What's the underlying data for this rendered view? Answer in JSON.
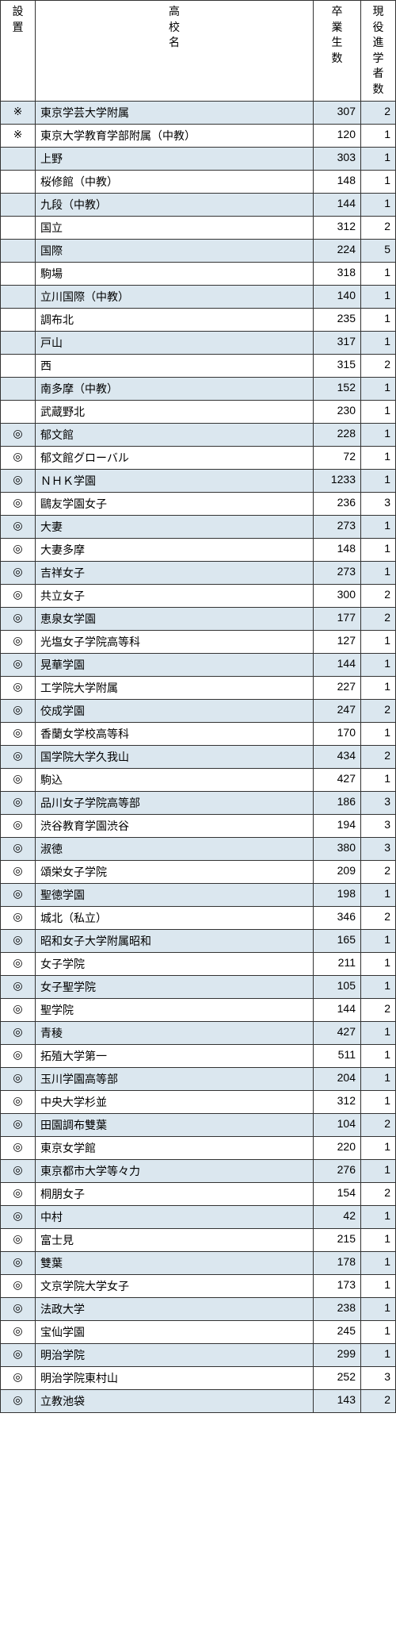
{
  "header": {
    "col1": [
      "設",
      "置"
    ],
    "col2": [
      "高",
      "校",
      "名"
    ],
    "col3": [
      "卒",
      "業",
      "生",
      "数"
    ],
    "col4": [
      "現",
      "役",
      "進",
      "学",
      "者",
      "数"
    ]
  },
  "stripe_color": "#dbe7ef",
  "rows": [
    {
      "mark": "※",
      "name": "東京学芸大学附属",
      "grad": 307,
      "adv": 2,
      "stripe": true
    },
    {
      "mark": "※",
      "name": "東京大学教育学部附属（中教）",
      "grad": 120,
      "adv": 1,
      "stripe": false
    },
    {
      "mark": "",
      "name": "上野",
      "grad": 303,
      "adv": 1,
      "stripe": true
    },
    {
      "mark": "",
      "name": "桜修館（中教）",
      "grad": 148,
      "adv": 1,
      "stripe": false
    },
    {
      "mark": "",
      "name": "九段（中教）",
      "grad": 144,
      "adv": 1,
      "stripe": true
    },
    {
      "mark": "",
      "name": "国立",
      "grad": 312,
      "adv": 2,
      "stripe": false
    },
    {
      "mark": "",
      "name": "国際",
      "grad": 224,
      "adv": 5,
      "stripe": true
    },
    {
      "mark": "",
      "name": "駒場",
      "grad": 318,
      "adv": 1,
      "stripe": false
    },
    {
      "mark": "",
      "name": "立川国際（中教）",
      "grad": 140,
      "adv": 1,
      "stripe": true
    },
    {
      "mark": "",
      "name": "調布北",
      "grad": 235,
      "adv": 1,
      "stripe": false
    },
    {
      "mark": "",
      "name": "戸山",
      "grad": 317,
      "adv": 1,
      "stripe": true
    },
    {
      "mark": "",
      "name": "西",
      "grad": 315,
      "adv": 2,
      "stripe": false
    },
    {
      "mark": "",
      "name": "南多摩（中教）",
      "grad": 152,
      "adv": 1,
      "stripe": true
    },
    {
      "mark": "",
      "name": "武蔵野北",
      "grad": 230,
      "adv": 1,
      "stripe": false
    },
    {
      "mark": "◎",
      "name": "郁文館",
      "grad": 228,
      "adv": 1,
      "stripe": true
    },
    {
      "mark": "◎",
      "name": "郁文館グローバル",
      "grad": 72,
      "adv": 1,
      "stripe": false
    },
    {
      "mark": "◎",
      "name": "ＮＨＫ学園",
      "grad": 1233,
      "adv": 1,
      "stripe": true
    },
    {
      "mark": "◎",
      "name": "鷗友学園女子",
      "grad": 236,
      "adv": 3,
      "stripe": false
    },
    {
      "mark": "◎",
      "name": "大妻",
      "grad": 273,
      "adv": 1,
      "stripe": true
    },
    {
      "mark": "◎",
      "name": "大妻多摩",
      "grad": 148,
      "adv": 1,
      "stripe": false
    },
    {
      "mark": "◎",
      "name": "吉祥女子",
      "grad": 273,
      "adv": 1,
      "stripe": true
    },
    {
      "mark": "◎",
      "name": "共立女子",
      "grad": 300,
      "adv": 2,
      "stripe": false
    },
    {
      "mark": "◎",
      "name": "恵泉女学園",
      "grad": 177,
      "adv": 2,
      "stripe": true
    },
    {
      "mark": "◎",
      "name": "光塩女子学院高等科",
      "grad": 127,
      "adv": 1,
      "stripe": false
    },
    {
      "mark": "◎",
      "name": "晃華学園",
      "grad": 144,
      "adv": 1,
      "stripe": true
    },
    {
      "mark": "◎",
      "name": "工学院大学附属",
      "grad": 227,
      "adv": 1,
      "stripe": false
    },
    {
      "mark": "◎",
      "name": "佼成学園",
      "grad": 247,
      "adv": 2,
      "stripe": true
    },
    {
      "mark": "◎",
      "name": "香蘭女学校高等科",
      "grad": 170,
      "adv": 1,
      "stripe": false
    },
    {
      "mark": "◎",
      "name": "国学院大学久我山",
      "grad": 434,
      "adv": 2,
      "stripe": true
    },
    {
      "mark": "◎",
      "name": "駒込",
      "grad": 427,
      "adv": 1,
      "stripe": false
    },
    {
      "mark": "◎",
      "name": "品川女子学院高等部",
      "grad": 186,
      "adv": 3,
      "stripe": true
    },
    {
      "mark": "◎",
      "name": "渋谷教育学園渋谷",
      "grad": 194,
      "adv": 3,
      "stripe": false
    },
    {
      "mark": "◎",
      "name": "淑徳",
      "grad": 380,
      "adv": 3,
      "stripe": true
    },
    {
      "mark": "◎",
      "name": "頌栄女子学院",
      "grad": 209,
      "adv": 2,
      "stripe": false
    },
    {
      "mark": "◎",
      "name": "聖徳学園",
      "grad": 198,
      "adv": 1,
      "stripe": true
    },
    {
      "mark": "◎",
      "name": "城北（私立）",
      "grad": 346,
      "adv": 2,
      "stripe": false
    },
    {
      "mark": "◎",
      "name": "昭和女子大学附属昭和",
      "grad": 165,
      "adv": 1,
      "stripe": true
    },
    {
      "mark": "◎",
      "name": "女子学院",
      "grad": 211,
      "adv": 1,
      "stripe": false
    },
    {
      "mark": "◎",
      "name": "女子聖学院",
      "grad": 105,
      "adv": 1,
      "stripe": true
    },
    {
      "mark": "◎",
      "name": "聖学院",
      "grad": 144,
      "adv": 2,
      "stripe": false
    },
    {
      "mark": "◎",
      "name": "青稜",
      "grad": 427,
      "adv": 1,
      "stripe": true
    },
    {
      "mark": "◎",
      "name": "拓殖大学第一",
      "grad": 511,
      "adv": 1,
      "stripe": false
    },
    {
      "mark": "◎",
      "name": "玉川学園高等部",
      "grad": 204,
      "adv": 1,
      "stripe": true
    },
    {
      "mark": "◎",
      "name": "中央大学杉並",
      "grad": 312,
      "adv": 1,
      "stripe": false
    },
    {
      "mark": "◎",
      "name": "田園調布雙葉",
      "grad": 104,
      "adv": 2,
      "stripe": true
    },
    {
      "mark": "◎",
      "name": "東京女学館",
      "grad": 220,
      "adv": 1,
      "stripe": false
    },
    {
      "mark": "◎",
      "name": "東京都市大学等々力",
      "grad": 276,
      "adv": 1,
      "stripe": true
    },
    {
      "mark": "◎",
      "name": "桐朋女子",
      "grad": 154,
      "adv": 2,
      "stripe": false
    },
    {
      "mark": "◎",
      "name": "中村",
      "grad": 42,
      "adv": 1,
      "stripe": true
    },
    {
      "mark": "◎",
      "name": "富士見",
      "grad": 215,
      "adv": 1,
      "stripe": false
    },
    {
      "mark": "◎",
      "name": "雙葉",
      "grad": 178,
      "adv": 1,
      "stripe": true
    },
    {
      "mark": "◎",
      "name": "文京学院大学女子",
      "grad": 173,
      "adv": 1,
      "stripe": false
    },
    {
      "mark": "◎",
      "name": "法政大学",
      "grad": 238,
      "adv": 1,
      "stripe": true
    },
    {
      "mark": "◎",
      "name": "宝仙学園",
      "grad": 245,
      "adv": 1,
      "stripe": false
    },
    {
      "mark": "◎",
      "name": "明治学院",
      "grad": 299,
      "adv": 1,
      "stripe": true
    },
    {
      "mark": "◎",
      "name": "明治学院東村山",
      "grad": 252,
      "adv": 3,
      "stripe": false
    },
    {
      "mark": "◎",
      "name": "立教池袋",
      "grad": 143,
      "adv": 2,
      "stripe": true
    }
  ]
}
